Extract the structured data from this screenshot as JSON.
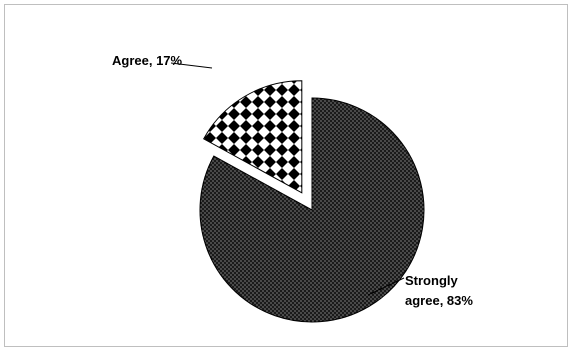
{
  "chart_data": {
    "type": "pie",
    "slices": [
      {
        "label": "Strongly agree",
        "value": 83,
        "display": "Strongly agree, 83%",
        "pattern": "dotted-dark"
      },
      {
        "label": "Agree",
        "value": 17,
        "display": "Agree, 17%",
        "pattern": "checker-diamond"
      }
    ],
    "exploded": true,
    "legend": "none",
    "title": ""
  }
}
